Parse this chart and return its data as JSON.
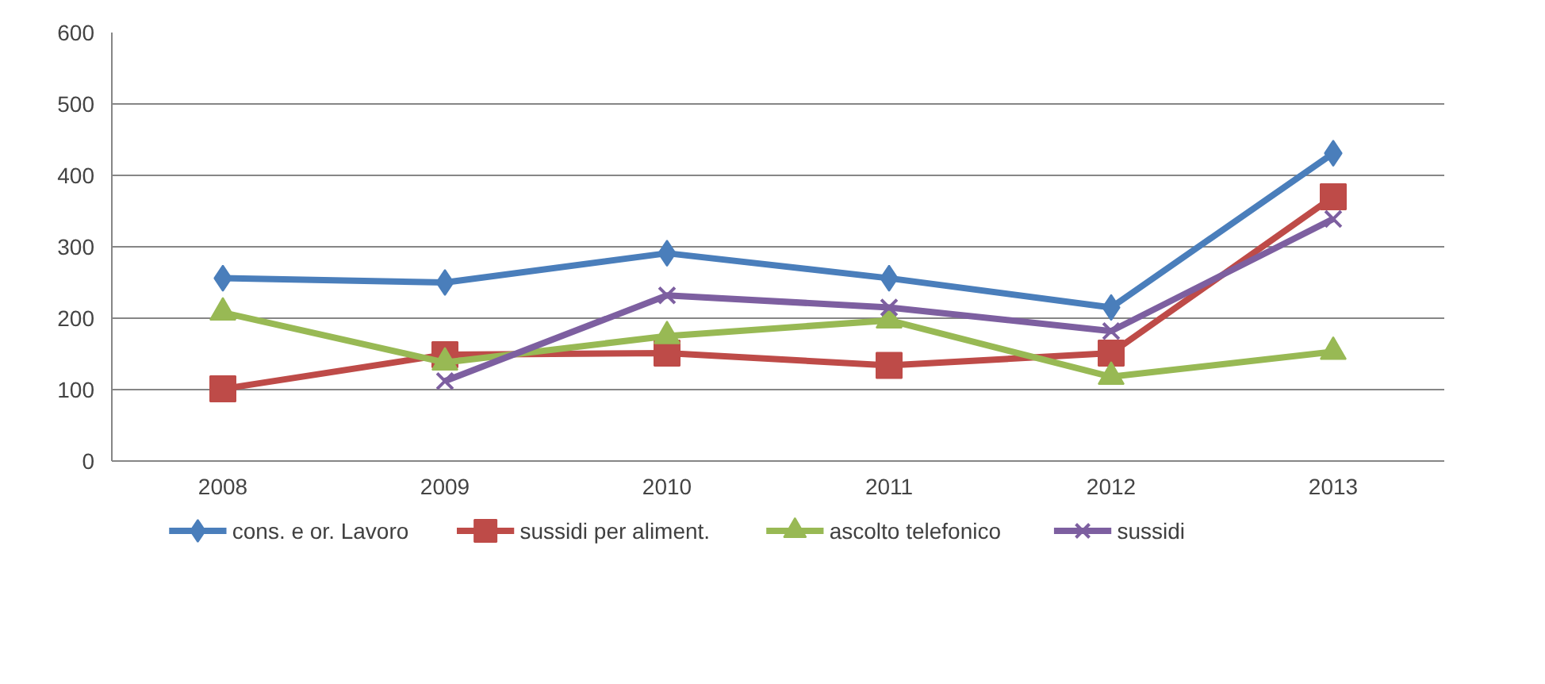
{
  "chart_data": {
    "type": "line",
    "categories": [
      "2008",
      "2009",
      "2010",
      "2011",
      "2012",
      "2013"
    ],
    "ylim": [
      0,
      600
    ],
    "yticks": [
      0,
      100,
      200,
      300,
      400,
      500,
      600
    ],
    "grid": "y",
    "legend": "bottom",
    "line_style": "solid",
    "series": [
      {
        "name": "cons. e or. Lavoro",
        "color": "#4a7ebb",
        "marker": "diamond",
        "values": [
          256,
          250,
          291,
          256,
          215,
          431
        ]
      },
      {
        "name": "sussidi per aliment.",
        "color": "#be4b48",
        "marker": "square",
        "values": [
          101,
          149,
          151,
          134,
          151,
          370
        ]
      },
      {
        "name": "ascolto telefonico",
        "color": "#98b954",
        "marker": "triangle",
        "values": [
          208,
          138,
          175,
          197,
          118,
          153
        ]
      },
      {
        "name": "sussidi",
        "color": "#7d5fa0",
        "marker": "cross",
        "values": [
          null,
          112,
          232,
          215,
          182,
          339
        ]
      }
    ]
  }
}
